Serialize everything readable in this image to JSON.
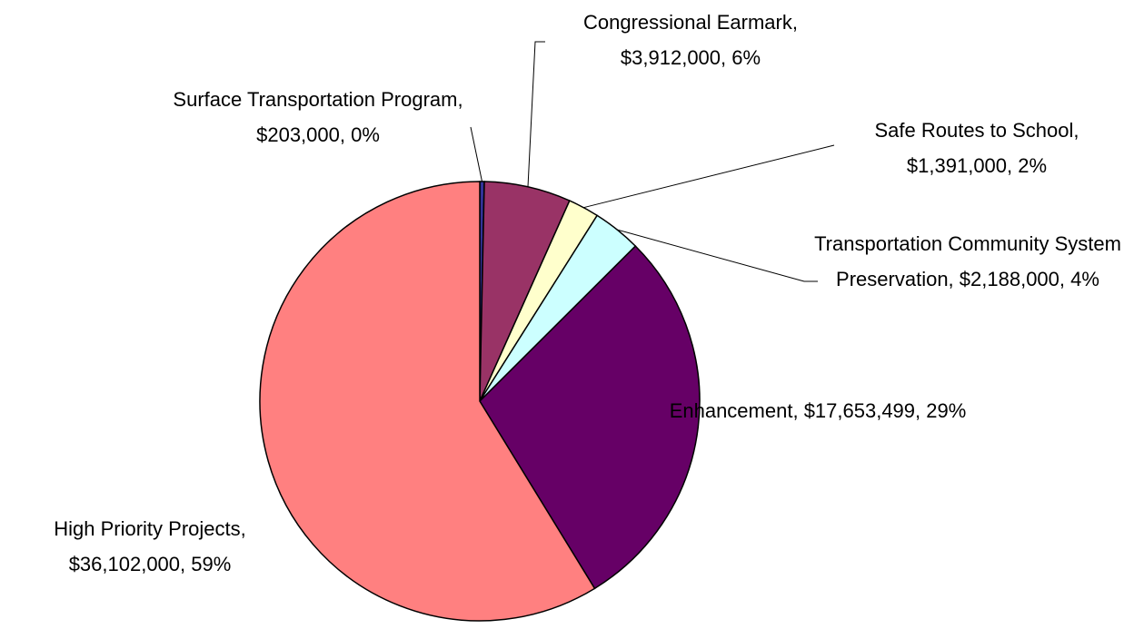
{
  "chart_data": {
    "type": "pie",
    "categories": [
      "Surface Transportation Program,",
      "Congressional Earmark,",
      "Safe Routes to School,",
      "Transportation Community System Preservation,",
      "Enhancement,",
      "High Priority Projects,"
    ],
    "values": [
      203000,
      3912000,
      1391000,
      2188000,
      17653499,
      36102000
    ],
    "value_labels": [
      "$203,000, 0%",
      "$3,912,000, 6%",
      "$1,391,000, 2%",
      "$2,188,000, 4%",
      "$17,653,499, 29%",
      "$36,102,000, 59%"
    ],
    "colors": [
      "#333399",
      "#993366",
      "#ffffcc",
      "#ccffff",
      "#660066",
      "#ff8080"
    ]
  }
}
